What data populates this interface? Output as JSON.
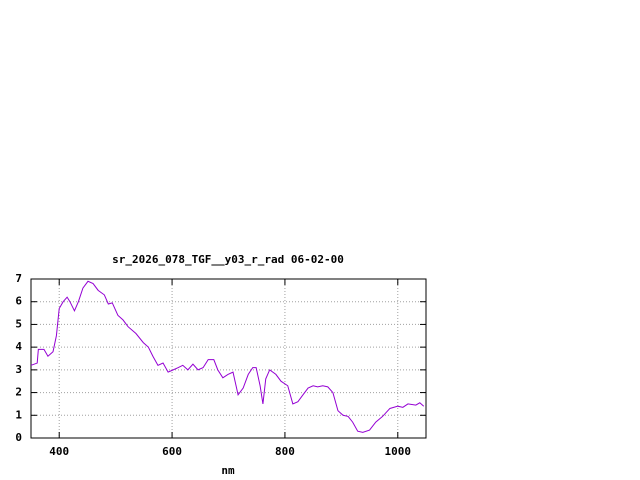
{
  "chart_data": {
    "type": "line",
    "title": "sr_2026_078_TGF__y03_r_rad 06-02-00",
    "xlabel": "nm",
    "x": [
      350,
      361,
      363,
      373,
      380,
      389,
      395,
      400,
      407,
      414,
      419,
      427,
      434,
      442,
      451,
      460,
      469,
      480,
      487,
      494,
      504,
      513,
      522,
      536,
      549,
      558,
      566,
      575,
      584,
      593,
      602,
      611,
      619,
      628,
      637,
      646,
      655,
      664,
      674,
      681,
      690,
      699,
      708,
      717,
      726,
      735,
      743,
      749,
      756,
      761,
      766,
      773,
      784,
      793,
      805,
      814,
      823,
      832,
      841,
      850,
      858,
      867,
      876,
      885,
      894,
      903,
      912,
      920,
      929,
      938,
      950,
      961,
      973,
      986,
      1000,
      1009,
      1018,
      1032,
      1039,
      1046
    ],
    "series": [
      {
        "color": "#9400d3",
        "values": [
          3.2,
          3.3,
          3.9,
          3.9,
          3.6,
          3.8,
          4.5,
          5.7,
          6.0,
          6.2,
          6.0,
          5.6,
          6.0,
          6.6,
          6.9,
          6.8,
          6.5,
          6.3,
          5.9,
          5.95,
          5.4,
          5.2,
          4.9,
          4.6,
          4.2,
          4.0,
          3.6,
          3.2,
          3.3,
          2.9,
          3.0,
          3.1,
          3.2,
          3.0,
          3.25,
          3.0,
          3.1,
          3.45,
          3.45,
          3.0,
          2.65,
          2.8,
          2.9,
          1.9,
          2.2,
          2.8,
          3.1,
          3.1,
          2.3,
          1.5,
          2.6,
          3.0,
          2.8,
          2.5,
          2.3,
          1.5,
          1.6,
          1.9,
          2.2,
          2.3,
          2.25,
          2.3,
          2.25,
          2.0,
          1.2,
          1.0,
          0.95,
          0.7,
          0.3,
          0.25,
          0.35,
          0.7,
          0.95,
          1.3,
          1.4,
          1.35,
          1.5,
          1.45,
          1.55,
          1.4
        ]
      }
    ],
    "xlim": [
      350,
      1050
    ],
    "ylim": [
      0,
      7
    ],
    "xticks": [
      400,
      600,
      800,
      1000
    ],
    "yticks": [
      0,
      1,
      2,
      3,
      4,
      5,
      6,
      7
    ],
    "grid": true
  }
}
